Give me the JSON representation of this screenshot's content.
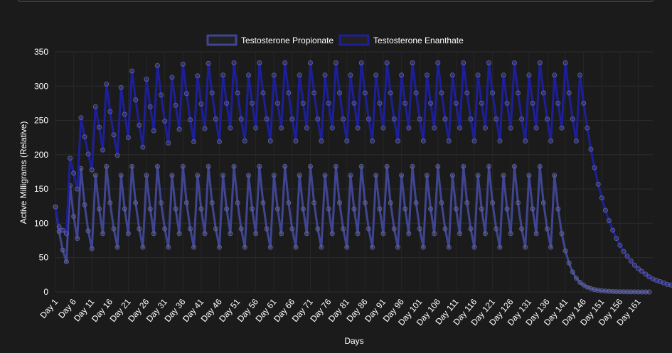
{
  "chart_data": {
    "type": "line",
    "xlabel": "Days",
    "ylabel": "Active Milligrams (Relative)",
    "ylim": [
      0,
      350
    ],
    "yticks": [
      0,
      50,
      100,
      150,
      200,
      250,
      300,
      350
    ],
    "x_tick_labels": [
      "Day 1",
      "Day 6",
      "Day 11",
      "Day 16",
      "Day 21",
      "Day 26",
      "Day 31",
      "Day 36",
      "Day 41",
      "Day 46",
      "Day 51",
      "Day 56",
      "Day 61",
      "Day 66",
      "Day 71",
      "Day 76",
      "Day 81",
      "Day 86",
      "Day 91",
      "Day 96",
      "Day 101",
      "Day 106",
      "Day 111",
      "Day 116",
      "Day 121",
      "Day 126",
      "Day 131",
      "Day 136",
      "Day 141",
      "Day 146",
      "Day 151",
      "Day 156",
      "Day 161"
    ],
    "x_first_day": 1,
    "x_last_day": 165,
    "grid": true,
    "legend": "top",
    "series": [
      {
        "name": "Testosterone Propionate",
        "color": "#3f4590",
        "values": [
          124,
          88,
          61,
          44,
          155,
          110,
          78,
          180,
          127,
          89,
          63,
          170,
          121,
          85,
          183,
          130,
          92,
          65,
          170,
          121,
          85,
          183,
          130,
          92,
          65,
          170,
          121,
          85,
          183,
          130,
          92,
          65,
          170,
          121,
          85,
          183,
          130,
          92,
          65,
          170,
          121,
          85,
          183,
          130,
          92,
          65,
          170,
          121,
          85,
          183,
          130,
          92,
          65,
          170,
          121,
          85,
          183,
          130,
          92,
          65,
          170,
          121,
          85,
          183,
          130,
          92,
          65,
          170,
          121,
          85,
          183,
          130,
          92,
          65,
          170,
          121,
          85,
          183,
          130,
          92,
          65,
          170,
          121,
          85,
          183,
          130,
          92,
          65,
          170,
          121,
          85,
          183,
          130,
          92,
          65,
          170,
          121,
          85,
          183,
          130,
          92,
          65,
          170,
          121,
          85,
          183,
          130,
          92,
          65,
          170,
          121,
          85,
          183,
          130,
          92,
          65,
          170,
          121,
          85,
          183,
          130,
          92,
          65,
          170,
          121,
          85,
          183,
          130,
          92,
          65,
          170,
          121,
          85,
          183,
          130,
          92,
          65,
          170,
          121,
          85,
          60,
          42,
          29,
          20,
          14,
          10,
          7,
          5,
          3.5,
          2.5,
          1.8,
          1.2,
          0.9,
          0.6,
          0.4,
          0.3,
          0.2,
          0.15,
          0.1,
          0.07,
          0.05,
          0.03,
          0.02,
          0.01
        ]
      },
      {
        "name": "Testosterone Enanthate",
        "color": "#1d1f9a",
        "values": [
          124,
          95,
          90,
          85,
          195,
          173,
          150,
          254,
          226,
          201,
          178,
          270,
          240,
          207,
          303,
          263,
          229,
          199,
          298,
          259,
          225,
          322,
          280,
          243,
          211,
          310,
          270,
          235,
          330,
          287,
          249,
          217,
          313,
          272,
          237,
          332,
          289,
          251,
          219,
          315,
          274,
          238,
          333,
          290,
          252,
          219,
          316,
          275,
          239,
          334,
          290,
          252,
          220,
          316,
          275,
          239,
          334,
          290,
          252,
          220,
          316,
          275,
          239,
          334,
          290,
          252,
          220,
          316,
          275,
          239,
          334,
          290,
          252,
          220,
          316,
          275,
          239,
          334,
          290,
          252,
          220,
          316,
          275,
          239,
          334,
          290,
          252,
          220,
          316,
          275,
          239,
          334,
          290,
          252,
          220,
          316,
          275,
          239,
          334,
          290,
          252,
          220,
          316,
          275,
          239,
          334,
          290,
          252,
          220,
          316,
          275,
          239,
          334,
          290,
          252,
          220,
          316,
          275,
          239,
          334,
          290,
          252,
          220,
          316,
          275,
          239,
          334,
          290,
          252,
          220,
          316,
          275,
          239,
          334,
          290,
          252,
          220,
          316,
          275,
          239,
          334,
          290,
          252,
          220,
          316,
          275,
          239,
          208,
          181,
          157,
          137,
          119,
          104,
          90,
          78,
          68,
          59,
          52,
          45,
          39,
          34,
          30,
          26,
          22,
          19,
          17,
          15,
          13,
          11,
          10,
          8,
          7,
          6
        ]
      }
    ]
  }
}
